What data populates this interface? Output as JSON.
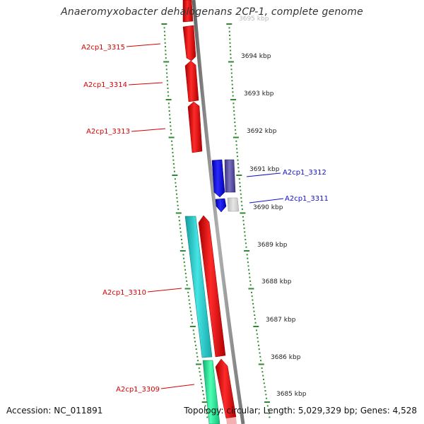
{
  "title": "Anaeromyxobacter dehalogenans 2CP-1, complete genome",
  "footer": {
    "accession": "Accession: NC_011891",
    "stats": "Topology: circular; Length: 5,029,329 bp; Genes: 4,528"
  },
  "colors": {
    "background": "#ffffff",
    "backbone": "#999999",
    "tick": "#2f8a2f",
    "gene_red": "#e8000b",
    "gene_blue": "#1414e6",
    "gene_purple": "#5b4f9e",
    "gene_cyan": "#23c4c4",
    "gene_green": "#1fe89a",
    "label_red": "#d40000",
    "label_blue": "#1010cc"
  },
  "kbp_labels": [
    "3695 kbp",
    "3694 kbp",
    "3693 kbp",
    "3692 kbp",
    "3691 kbp",
    "3690 kbp",
    "3689 kbp",
    "3688 kbp",
    "3687 kbp",
    "3686 kbp",
    "3685 kbp"
  ],
  "gene_labels": [
    {
      "text": "A2cp1_3315",
      "color": "red"
    },
    {
      "text": "A2cp1_3314",
      "color": "red"
    },
    {
      "text": "A2cp1_3313",
      "color": "red"
    },
    {
      "text": "A2cp1_3312",
      "color": "blue"
    },
    {
      "text": "A2cp1_3311",
      "color": "blue"
    },
    {
      "text": "A2cp1_3310",
      "color": "red"
    },
    {
      "text": "A2cp1_3309",
      "color": "red"
    }
  ]
}
